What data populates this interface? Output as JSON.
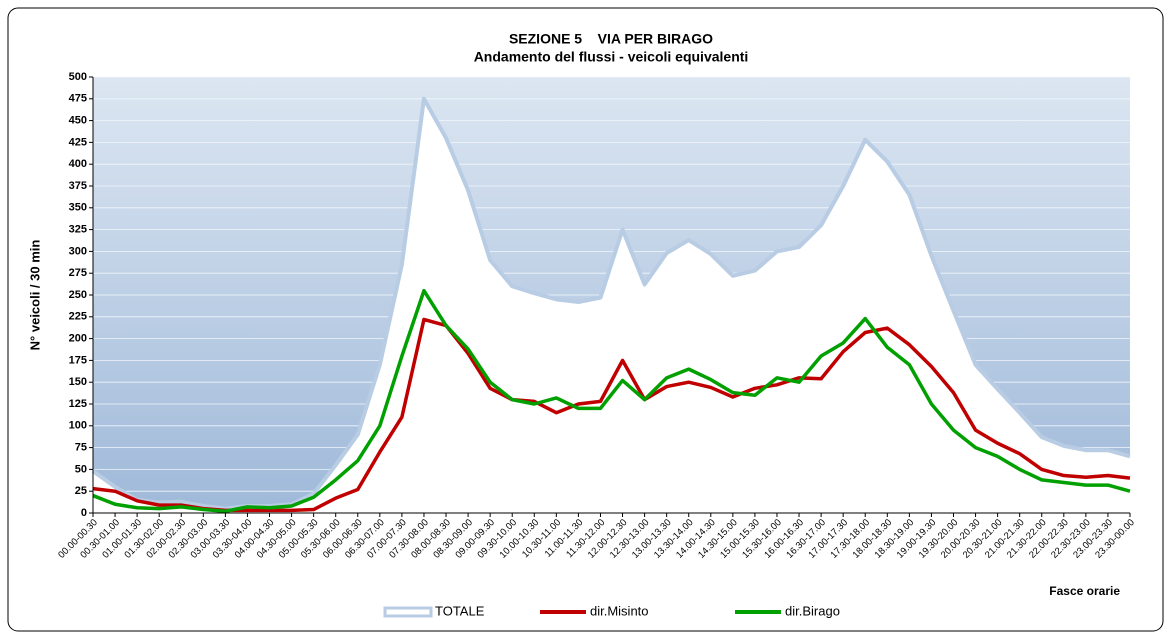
{
  "chart_data": {
    "type": "line",
    "title": "SEZIONE 5    VIA PER BIRAGO",
    "subtitle": "Andamento del flussi - veicoli equivalenti",
    "y_label": "N° veicoli / 30 min",
    "x_label": "Fasce orarie",
    "categories": [
      "00.00-00.30",
      "00.30-01.00",
      "01.00-01.30",
      "01.30-02.00",
      "02.00-02.30",
      "02.30-03.00",
      "03.00-03.30",
      "03.30-04.00",
      "04.00-04.30",
      "04.30-05.00",
      "05.00-05.30",
      "05.30-06.00",
      "06.00-06.30",
      "06.30-07.00",
      "07.00-07.30",
      "07.30-08.00",
      "08.00-08.30",
      "08.30-09.00",
      "09.00-09.30",
      "09.30-10.00",
      "10.00-10.30",
      "10.30-11.00",
      "11.00-11.30",
      "11.30-12.00",
      "12.00-12.30",
      "12.30-13.00",
      "13.00-13.30",
      "13.30-14.00",
      "14.00-14.30",
      "14.30-15.00",
      "15.00-15.30",
      "15.30-16.00",
      "16.00-16.30",
      "16.30-17.00",
      "17.00-17.30",
      "17.30-18.00",
      "18.00-18.30",
      "18.30-19.00",
      "19.00-19.30",
      "19.30-20.00",
      "20.00-20.30",
      "20.30-21.00",
      "21.00-21.30",
      "21.30-22.00",
      "22.00-22.30",
      "22.30-23.00",
      "23.00-23.30",
      "23.30-00.00"
    ],
    "series": [
      {
        "name": "TOTALE",
        "color": "#b8cce4",
        "values": [
          48,
          30,
          15,
          12,
          13,
          8,
          5,
          8,
          8,
          10,
          22,
          55,
          90,
          170,
          285,
          475,
          430,
          370,
          290,
          260,
          252,
          245,
          242,
          247,
          325,
          262,
          298,
          313,
          297,
          272,
          278,
          300,
          305,
          330,
          375,
          428,
          403,
          365,
          295,
          232,
          170,
          142,
          115,
          87,
          77,
          72,
          72,
          65
        ]
      },
      {
        "name": "dir.Misinto",
        "color": "#c00000",
        "values": [
          28,
          25,
          14,
          9,
          9,
          5,
          3,
          3,
          3,
          3,
          4,
          17,
          27,
          70,
          110,
          222,
          215,
          183,
          143,
          130,
          128,
          115,
          125,
          128,
          175,
          130,
          145,
          150,
          144,
          133,
          143,
          147,
          155,
          154,
          185,
          207,
          212,
          193,
          168,
          138,
          95,
          80,
          68,
          50,
          43,
          41,
          43,
          40
        ]
      },
      {
        "name": "dir.Birago",
        "color": "#00a000",
        "values": [
          20,
          10,
          6,
          5,
          7,
          4,
          2,
          7,
          6,
          8,
          18,
          38,
          60,
          100,
          180,
          255,
          215,
          188,
          150,
          130,
          125,
          132,
          120,
          120,
          152,
          130,
          155,
          165,
          153,
          138,
          135,
          155,
          150,
          180,
          195,
          223,
          190,
          170,
          125,
          95,
          75,
          65,
          50,
          38,
          35,
          32,
          32,
          25
        ]
      }
    ],
    "ylim": [
      0,
      500
    ],
    "yticks": [
      0,
      25,
      50,
      75,
      100,
      125,
      150,
      175,
      200,
      225,
      250,
      275,
      300,
      325,
      350,
      375,
      400,
      425,
      450,
      475,
      500
    ],
    "grid": true,
    "legend": "bottom"
  }
}
